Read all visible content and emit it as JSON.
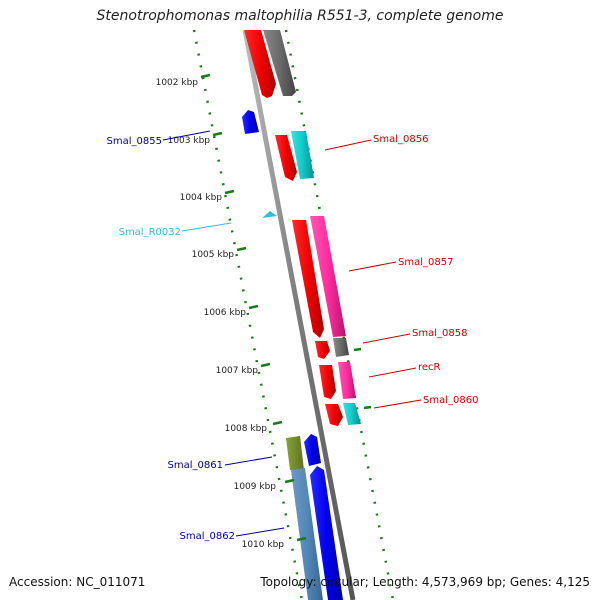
{
  "title": "Stenotrophomonas maltophilia R551-3, complete genome",
  "footer": {
    "accession": "Accession: NC_011071",
    "topology": "Topology: circular; Length: 4,573,969 bp; Genes: 4,125"
  },
  "ticks": [
    "1002 kbp",
    "1003 kbp",
    "1004 kbp",
    "1005 kbp",
    "1006 kbp",
    "1007 kbp",
    "1008 kbp",
    "1009 kbp",
    "1010 kbp"
  ],
  "colors": {
    "forward_label": "#cc0000",
    "reverse_label": "#000099",
    "rna_label": "#33bbdd",
    "backbone": "#808080",
    "tick": "#1a7a1a"
  },
  "gene_labels": [
    {
      "text": "Smal_0855",
      "strand": "reverse",
      "color": "#000099"
    },
    {
      "text": "Smal_R0032",
      "strand": "reverse",
      "color": "#33bbdd"
    },
    {
      "text": "Smal_0856",
      "strand": "forward",
      "color": "#cc0000"
    },
    {
      "text": "Smal_0857",
      "strand": "forward",
      "color": "#cc0000"
    },
    {
      "text": "Smal_0858",
      "strand": "forward",
      "color": "#cc0000"
    },
    {
      "text": "recR",
      "strand": "forward",
      "color": "#cc0000"
    },
    {
      "text": "Smal_0860",
      "strand": "forward",
      "color": "#cc0000"
    },
    {
      "text": "Smal_0861",
      "strand": "reverse",
      "color": "#000099"
    },
    {
      "text": "Smal_0862",
      "strand": "reverse",
      "color": "#000099"
    }
  ]
}
